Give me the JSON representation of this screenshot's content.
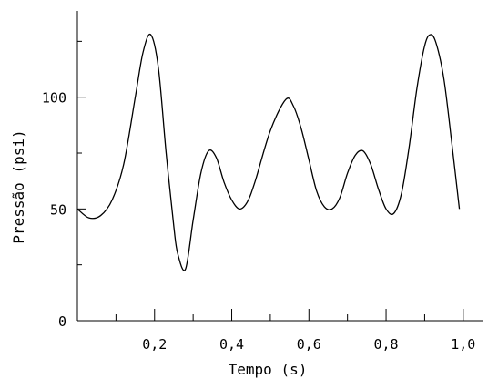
{
  "chart_data": {
    "type": "line",
    "title": "",
    "xlabel": "Tempo (s)",
    "ylabel": "Pressão (psi)",
    "xlim": [
      0,
      1.05
    ],
    "ylim": [
      0,
      140
    ],
    "x_ticks": [
      0.2,
      0.4,
      0.6,
      0.8,
      1.0
    ],
    "x_tick_labels": [
      "0,2",
      "0,4",
      "0,6",
      "0,8",
      "1,0"
    ],
    "x_minor_ticks": [
      0.1,
      0.3,
      0.5,
      0.7,
      0.9
    ],
    "y_ticks": [
      0,
      50,
      100
    ],
    "y_tick_labels": [
      "0",
      "50",
      "100"
    ],
    "y_minor_ticks": [
      25,
      75,
      125
    ],
    "grid": false,
    "series": [
      {
        "color": "#000000",
        "x": [
          0,
          0.03,
          0.06,
          0.09,
          0.12,
          0.15,
          0.17,
          0.19,
          0.21,
          0.23,
          0.25,
          0.26,
          0.28,
          0.3,
          0.32,
          0.34,
          0.36,
          0.38,
          0.4,
          0.42,
          0.44,
          0.46,
          0.5,
          0.54,
          0.56,
          0.58,
          0.6,
          0.62,
          0.64,
          0.66,
          0.68,
          0.7,
          0.72,
          0.74,
          0.76,
          0.78,
          0.8,
          0.82,
          0.84,
          0.86,
          0.88,
          0.9,
          0.915,
          0.93,
          0.95,
          0.97,
          0.99
        ],
        "y": [
          50,
          46,
          47,
          54,
          70,
          100,
          120,
          128,
          113,
          75,
          42,
          30,
          23,
          45,
          66,
          76,
          73,
          62,
          54,
          50,
          53,
          62,
          85,
          99,
          96,
          86,
          72,
          58,
          51,
          50,
          55,
          66,
          74,
          76,
          70,
          59,
          50,
          48,
          57,
          78,
          104,
          123,
          128,
          124,
          108,
          80,
          50
        ]
      }
    ]
  }
}
